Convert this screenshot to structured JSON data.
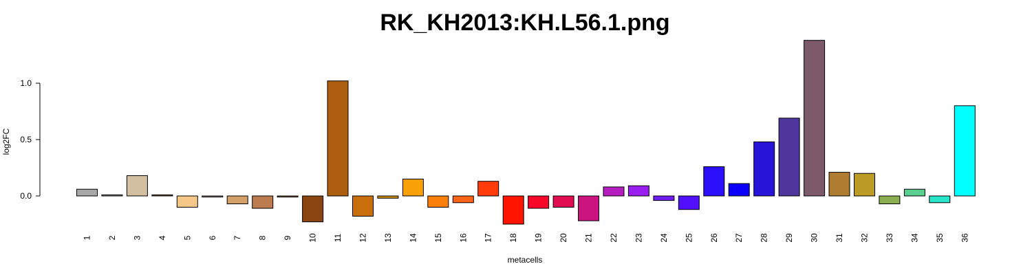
{
  "chart_data": {
    "type": "bar",
    "title": "RK_KH2013:KH.L56.1.png",
    "xlabel": "metacells",
    "ylabel": "log2FC",
    "ylim": [
      -0.3,
      1.4
    ],
    "yticks": [
      0.0,
      0.5,
      1.0
    ],
    "ytick_labels": [
      "0.0",
      "0.5",
      "1.0"
    ],
    "grid": false,
    "categories": [
      "1",
      "2",
      "3",
      "4",
      "5",
      "6",
      "7",
      "8",
      "9",
      "10",
      "11",
      "12",
      "13",
      "14",
      "15",
      "16",
      "17",
      "18",
      "19",
      "20",
      "21",
      "22",
      "23",
      "24",
      "25",
      "26",
      "27",
      "28",
      "29",
      "30",
      "31",
      "32",
      "33",
      "34",
      "35",
      "36"
    ],
    "values": [
      0.06,
      0.01,
      0.18,
      0.01,
      -0.1,
      -0.01,
      -0.07,
      -0.11,
      -0.01,
      -0.23,
      1.02,
      -0.18,
      -0.02,
      0.15,
      -0.1,
      -0.06,
      0.13,
      -0.25,
      -0.11,
      -0.1,
      -0.22,
      0.08,
      0.09,
      -0.04,
      -0.12,
      0.26,
      0.11,
      0.48,
      0.69,
      1.38,
      0.21,
      0.2,
      -0.07,
      0.06,
      -0.06,
      0.8
    ],
    "colors": [
      "#A8A8A8",
      "#9A9A9A",
      "#D2BEA0",
      "#7A5A3A",
      "#F6C888",
      "#B0A090",
      "#D4A06A",
      "#BC7C50",
      "#A07050",
      "#8B4513",
      "#AD5F0F",
      "#C86E0A",
      "#D08E14",
      "#F8A005",
      "#FA800A",
      "#FE6414",
      "#FF3C0A",
      "#FF1400",
      "#F80828",
      "#E20C50",
      "#CC1480",
      "#B41EBE",
      "#9A1EEE",
      "#6E1EF2",
      "#5010FA",
      "#2C10FA",
      "#0A00FA",
      "#2814D8",
      "#4E369C",
      "#7C5A6A",
      "#B07C30",
      "#BC9C24",
      "#8AAE50",
      "#5AD090",
      "#28E4C8",
      "#00FFFF"
    ]
  }
}
